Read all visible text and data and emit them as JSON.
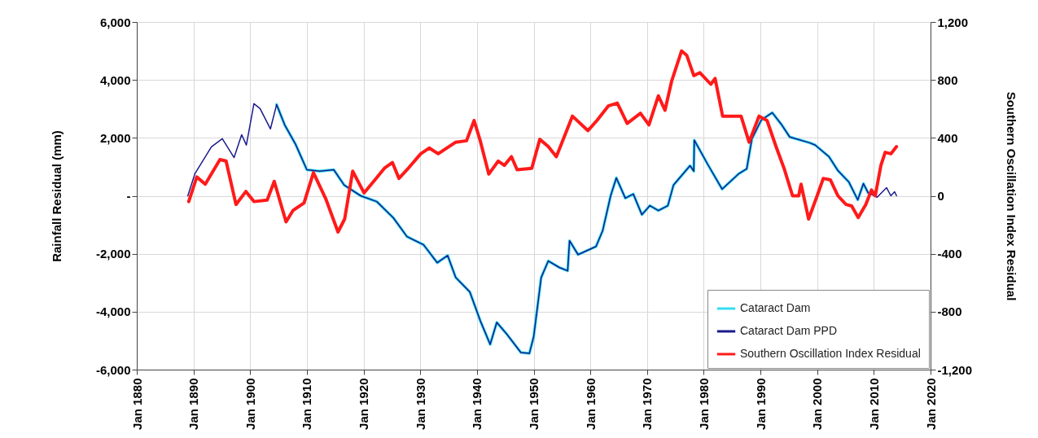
{
  "chart_data": {
    "type": "line",
    "ylabel": "Rainfall Residual (mm)",
    "y2label": "Southern Oscillation Index Residual",
    "xlim": [
      "1880-01",
      "2020-01"
    ],
    "xticks": [
      {
        "value": "1880-01",
        "label": "Jan 1880"
      },
      {
        "value": "1890-01",
        "label": "Jan 1890"
      },
      {
        "value": "1900-01",
        "label": "Jan 1900"
      },
      {
        "value": "1910-01",
        "label": "Jan 1910"
      },
      {
        "value": "1920-01",
        "label": "Jan 1920"
      },
      {
        "value": "1930-01",
        "label": "Jan 1930"
      },
      {
        "value": "1940-01",
        "label": "Jan 1940"
      },
      {
        "value": "1950-01",
        "label": "Jan 1950"
      },
      {
        "value": "1960-01",
        "label": "Jan 1960"
      },
      {
        "value": "1970-01",
        "label": "Jan 1970"
      },
      {
        "value": "1980-01",
        "label": "Jan 1980"
      },
      {
        "value": "1990-01",
        "label": "Jan 1990"
      },
      {
        "value": "2000-01",
        "label": "Jan 2000"
      },
      {
        "value": "2010-01",
        "label": "Jan 2010"
      },
      {
        "value": "2020-01",
        "label": "Jan 2020"
      }
    ],
    "ylim": [
      -6000,
      6000
    ],
    "yticks": [
      {
        "value": -6000,
        "label": "-6,000"
      },
      {
        "value": -4000,
        "label": "-4,000"
      },
      {
        "value": -2000,
        "label": "-2,000"
      },
      {
        "value": 0,
        "label": "-"
      },
      {
        "value": 2000,
        "label": "2,000"
      },
      {
        "value": 4000,
        "label": "4,000"
      },
      {
        "value": 6000,
        "label": "6,000"
      }
    ],
    "y2lim": [
      -1200,
      1200
    ],
    "y2ticks": [
      {
        "value": -1200,
        "label": "-1,200"
      },
      -800,
      -400,
      0,
      400,
      800,
      {
        "value": 1200,
        "label": "1,200"
      }
    ],
    "grid": true,
    "legend": "bottom right",
    "series": [
      {
        "name": "Cataract Dam",
        "color": "#33ddee",
        "x": [
          "1904-09",
          "1906-02",
          "1908-01",
          "1910-01",
          "1912-04",
          "1914-10",
          "1916-08",
          "1919-07",
          "1922-05",
          "1925-04",
          "1927-09",
          "1930-08",
          "1933-01",
          "1934-11",
          "1936-04",
          "1938-10",
          "1940-08",
          "1942-05",
          "1943-07",
          "1945-05",
          "1947-10",
          "1949-04",
          "1950-01",
          "1951-05",
          "1952-08",
          "1954-08",
          "1956-01",
          "1956-05",
          "1957-11",
          "1961-01",
          "1962-03",
          "1963-08",
          "1964-08",
          "1966-03",
          "1967-08",
          "1969-02",
          "1970-07",
          "1972-01",
          "1973-09",
          "1974-09",
          "1977-08",
          "1978-04",
          "1978-05",
          "1980-11",
          "1983-04",
          "1986-03",
          "1987-08",
          "1988-07",
          "1990-03",
          "1992-02",
          "1993-10",
          "1995-03",
          "1998-09",
          "1999-09",
          "2002-02",
          "2003-09",
          "2005-08",
          "2007-03",
          "2008-03",
          "2009-01"
        ],
        "values": [
          3150,
          2450,
          1780,
          900,
          850,
          900,
          370,
          0,
          -200,
          -760,
          -1410,
          -1690,
          -2310,
          -2060,
          -2820,
          -3320,
          -4310,
          -5130,
          -4370,
          -4790,
          -5410,
          -5440,
          -4870,
          -2820,
          -2250,
          -2480,
          -2590,
          -1550,
          -2030,
          -1750,
          -1210,
          0,
          620,
          -80,
          60,
          -650,
          -340,
          -510,
          -340,
          370,
          1040,
          850,
          1920,
          1040,
          230,
          760,
          930,
          1970,
          2620,
          2870,
          2450,
          2030,
          1830,
          1750,
          1350,
          870,
          480,
          -140,
          420,
          100
        ]
      },
      {
        "name": "Cataract Dam PPD",
        "color": "#1a1a8c",
        "x": [
          "1889-01",
          "1890-04",
          "1893-03",
          "1895-02",
          "1897-03",
          "1898-07",
          "1899-05",
          "1900-09",
          "1901-10",
          "1903-08",
          "1904-09",
          "1906-02",
          "1908-01",
          "1910-01",
          "1912-04",
          "1914-10",
          "1916-08",
          "1919-07",
          "1922-05",
          "1925-04",
          "1927-09",
          "1930-08",
          "1933-01",
          "1934-11",
          "1936-04",
          "1938-10",
          "1940-08",
          "1942-05",
          "1943-07",
          "1945-05",
          "1947-10",
          "1949-04",
          "1950-01",
          "1951-05",
          "1952-08",
          "1954-08",
          "1956-01",
          "1956-05",
          "1957-11",
          "1961-01",
          "1962-03",
          "1963-08",
          "1964-08",
          "1966-03",
          "1967-08",
          "1969-02",
          "1970-07",
          "1972-01",
          "1973-09",
          "1974-09",
          "1977-08",
          "1978-04",
          "1978-05",
          "1980-11",
          "1983-04",
          "1986-03",
          "1987-08",
          "1988-07",
          "1990-03",
          "1992-02",
          "1993-10",
          "1995-03",
          "1998-09",
          "1999-09",
          "2002-02",
          "2003-09",
          "2005-08",
          "2007-03",
          "2008-03",
          "2009-01",
          "2010-08",
          "2012-04",
          "2013-01",
          "2013-09",
          "2014-01"
        ],
        "values": [
          0,
          760,
          1690,
          1970,
          1320,
          2110,
          1750,
          3180,
          3010,
          2310,
          3150,
          2450,
          1780,
          900,
          850,
          900,
          370,
          0,
          -200,
          -760,
          -1410,
          -1690,
          -2310,
          -2060,
          -2820,
          -3320,
          -4310,
          -5130,
          -4370,
          -4790,
          -5410,
          -5440,
          -4870,
          -2820,
          -2250,
          -2480,
          -2590,
          -1550,
          -2030,
          -1750,
          -1210,
          0,
          620,
          -80,
          60,
          -650,
          -340,
          -510,
          -340,
          370,
          1040,
          850,
          1920,
          1040,
          230,
          760,
          930,
          1970,
          2620,
          2870,
          2450,
          2030,
          1830,
          1750,
          1350,
          870,
          480,
          -140,
          420,
          100,
          -50,
          280,
          0,
          140,
          0
        ]
      },
      {
        "name": "Southern Oscillation Index Residual",
        "color": "#ff1a1a",
        "axis": "y2",
        "x": [
          "1889-03",
          "1890-08",
          "1892-02",
          "1894-09",
          "1895-10",
          "1897-07",
          "1899-04",
          "1900-09",
          "1903-01",
          "1904-04",
          "1906-05",
          "1907-08",
          "1909-07",
          "1911-03",
          "1913-05",
          "1915-07",
          "1916-09",
          "1918-02",
          "1920-02",
          "1922-01",
          "1923-09",
          "1925-02",
          "1926-04",
          "1927-09",
          "1930-02",
          "1931-08",
          "1933-03",
          "1936-04",
          "1938-03",
          "1939-07",
          "1940-08",
          "1942-02",
          "1943-10",
          "1944-11",
          "1946-02",
          "1947-02",
          "1949-09",
          "1951-02",
          "1952-08",
          "1954-01",
          "1956-11",
          "1959-08",
          "1961-03",
          "1963-03",
          "1964-10",
          "1966-07",
          "1968-11",
          "1970-05",
          "1972-01",
          "1973-03",
          "1974-05",
          "1976-02",
          "1977-01",
          "1978-04",
          "1979-05",
          "1981-04",
          "1982-01",
          "1983-05",
          "1986-08",
          "1988-01",
          "1989-10",
          "1991-03",
          "1992-10",
          "1994-03",
          "1995-09",
          "1996-10",
          "1997-03",
          "1998-07",
          "2000-01",
          "2001-02",
          "2002-05",
          "2003-09",
          "2005-02",
          "2006-02",
          "2007-04",
          "2008-08",
          "2009-08",
          "2010-04",
          "2011-04",
          "2012-01",
          "2013-01",
          "2014-01"
        ],
        "values": [
          -40,
          130,
          80,
          250,
          240,
          -60,
          30,
          -40,
          -30,
          100,
          -180,
          -100,
          -50,
          160,
          -20,
          -250,
          -160,
          170,
          20,
          110,
          190,
          230,
          120,
          180,
          290,
          330,
          290,
          370,
          380,
          520,
          380,
          150,
          240,
          210,
          270,
          180,
          190,
          390,
          340,
          270,
          550,
          450,
          520,
          620,
          640,
          500,
          570,
          490,
          690,
          590,
          790,
          1000,
          970,
          830,
          850,
          770,
          810,
          550,
          550,
          370,
          550,
          520,
          340,
          190,
          0,
          0,
          80,
          -160,
          0,
          120,
          110,
          0,
          -60,
          -70,
          -150,
          -60,
          40,
          0,
          210,
          300,
          290,
          340
        ]
      }
    ]
  }
}
